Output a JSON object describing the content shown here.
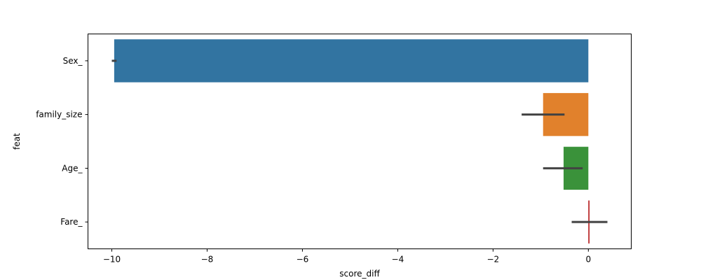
{
  "chart_data": {
    "type": "bar",
    "orientation": "horizontal",
    "xlabel": "score_diff",
    "ylabel": "feat",
    "xlim": [
      -10.5,
      0.9
    ],
    "xticks": [
      -10,
      -8,
      -6,
      -4,
      -2,
      0
    ],
    "xtick_labels": [
      "−10",
      "−8",
      "−6",
      "−4",
      "−2",
      "0"
    ],
    "grid": false,
    "categories": [
      "Sex_",
      "family_size",
      "Age_",
      "Fare_"
    ],
    "values": [
      -9.95,
      -0.95,
      -0.52,
      0.02
    ],
    "ci": [
      [
        -10.0,
        -9.9
      ],
      [
        -1.4,
        -0.5
      ],
      [
        -0.95,
        -0.12
      ],
      [
        -0.35,
        0.4
      ]
    ],
    "colors": [
      "#3274a1",
      "#e1812c",
      "#3a923a",
      "#c03d3e"
    ],
    "errorbar_color": "#424242"
  }
}
